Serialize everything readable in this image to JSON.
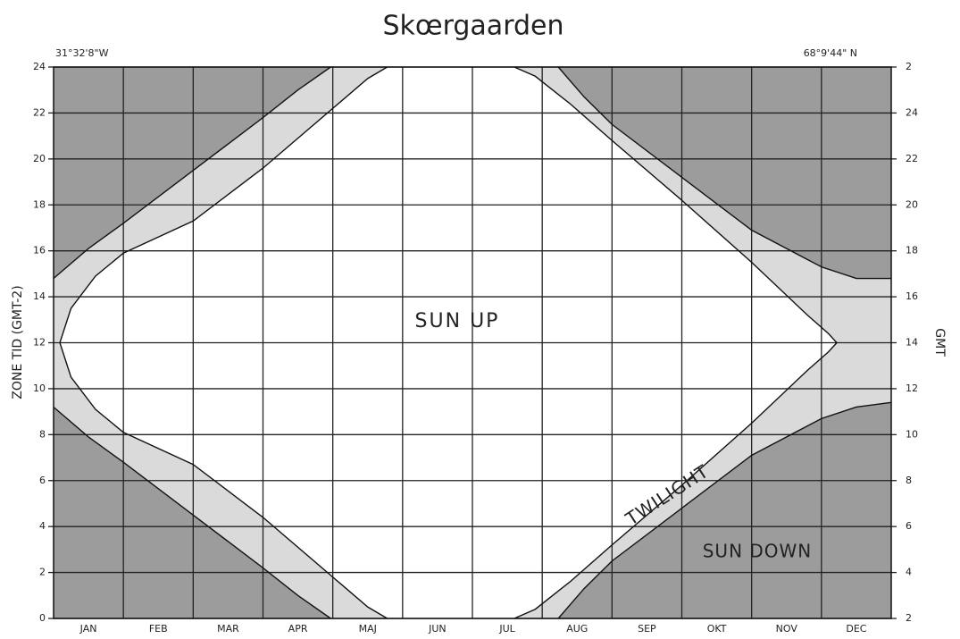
{
  "chart_data": {
    "type": "daylight",
    "title": "Skœrgaarden",
    "longitude": "31°32'8\"W",
    "latitude": "68°9'44\" N",
    "y_label": "ZONE TID (GMT-2)",
    "y2_label": "GMT",
    "annotations": [
      "SUN UP",
      "TWILIGHT",
      "SUN DOWN"
    ],
    "categories": [
      "JAN",
      "FEB",
      "MAR",
      "APR",
      "MAJ",
      "JUN",
      "JUL",
      "AUG",
      "SEP",
      "OKT",
      "NOV",
      "DEC"
    ],
    "xlim": [
      0,
      12
    ],
    "ylim": [
      0,
      24
    ],
    "yticks": [
      0,
      2,
      4,
      6,
      8,
      10,
      12,
      14,
      16,
      18,
      20,
      22,
      24
    ],
    "y2lim": [
      2,
      26
    ],
    "y2ticks": [
      2,
      4,
      6,
      8,
      10,
      12,
      14,
      16,
      18,
      20,
      22,
      24,
      {
        "value": 26,
        "label": "2"
      }
    ],
    "colors": {
      "sun_down": "#9c9c9c",
      "twilight": "#dadada",
      "sun_up": "#ffffff"
    },
    "grid": true,
    "series": [
      {
        "x": [
          0.09,
          0.25,
          0.6,
          1,
          2,
          3,
          4,
          4.5,
          4.78
        ],
        "values": [
          12,
          13.5,
          14.9,
          15.9,
          17.3,
          19.6,
          22.2,
          23.5,
          24
        ]
      },
      {
        "x": [
          0.09,
          0.25,
          0.6,
          1,
          2,
          3,
          4,
          4.5,
          4.78
        ],
        "values": [
          12,
          10.5,
          9.1,
          8.1,
          6.7,
          4.4,
          1.8,
          0.5,
          0
        ]
      },
      {
        "x": [
          6.6,
          6.9,
          7.4,
          8,
          9,
          10,
          10.8,
          11.1,
          11.22
        ],
        "values": [
          24,
          23.6,
          22.4,
          20.8,
          18.2,
          15.5,
          13.2,
          12.4,
          12
        ]
      },
      {
        "x": [
          6.6,
          6.9,
          7.4,
          8,
          9,
          10,
          10.8,
          11.1,
          11.22
        ],
        "values": [
          0,
          0.4,
          1.6,
          3.2,
          5.8,
          8.5,
          10.8,
          11.6,
          12
        ]
      },
      {
        "x": [
          0,
          0.5,
          1,
          2,
          3,
          3.5,
          3.97
        ],
        "values": [
          14.8,
          16.1,
          17.2,
          19.5,
          21.8,
          23,
          24
        ]
      },
      {
        "x": [
          0,
          0.5,
          1,
          2,
          3,
          3.5,
          3.97
        ],
        "values": [
          9.2,
          7.9,
          6.8,
          4.5,
          2.2,
          1,
          0
        ]
      },
      {
        "x": [
          7.23,
          7.6,
          8,
          9,
          10,
          11,
          11.5,
          12
        ],
        "values": [
          24,
          22.7,
          21.5,
          19.2,
          16.9,
          15.3,
          14.8,
          14.8
        ]
      },
      {
        "x": [
          7.23,
          7.6,
          8,
          9,
          10,
          11,
          11.5,
          12
        ],
        "values": [
          0,
          1.3,
          2.5,
          4.8,
          7.1,
          8.7,
          9.2,
          9.4
        ]
      }
    ]
  }
}
